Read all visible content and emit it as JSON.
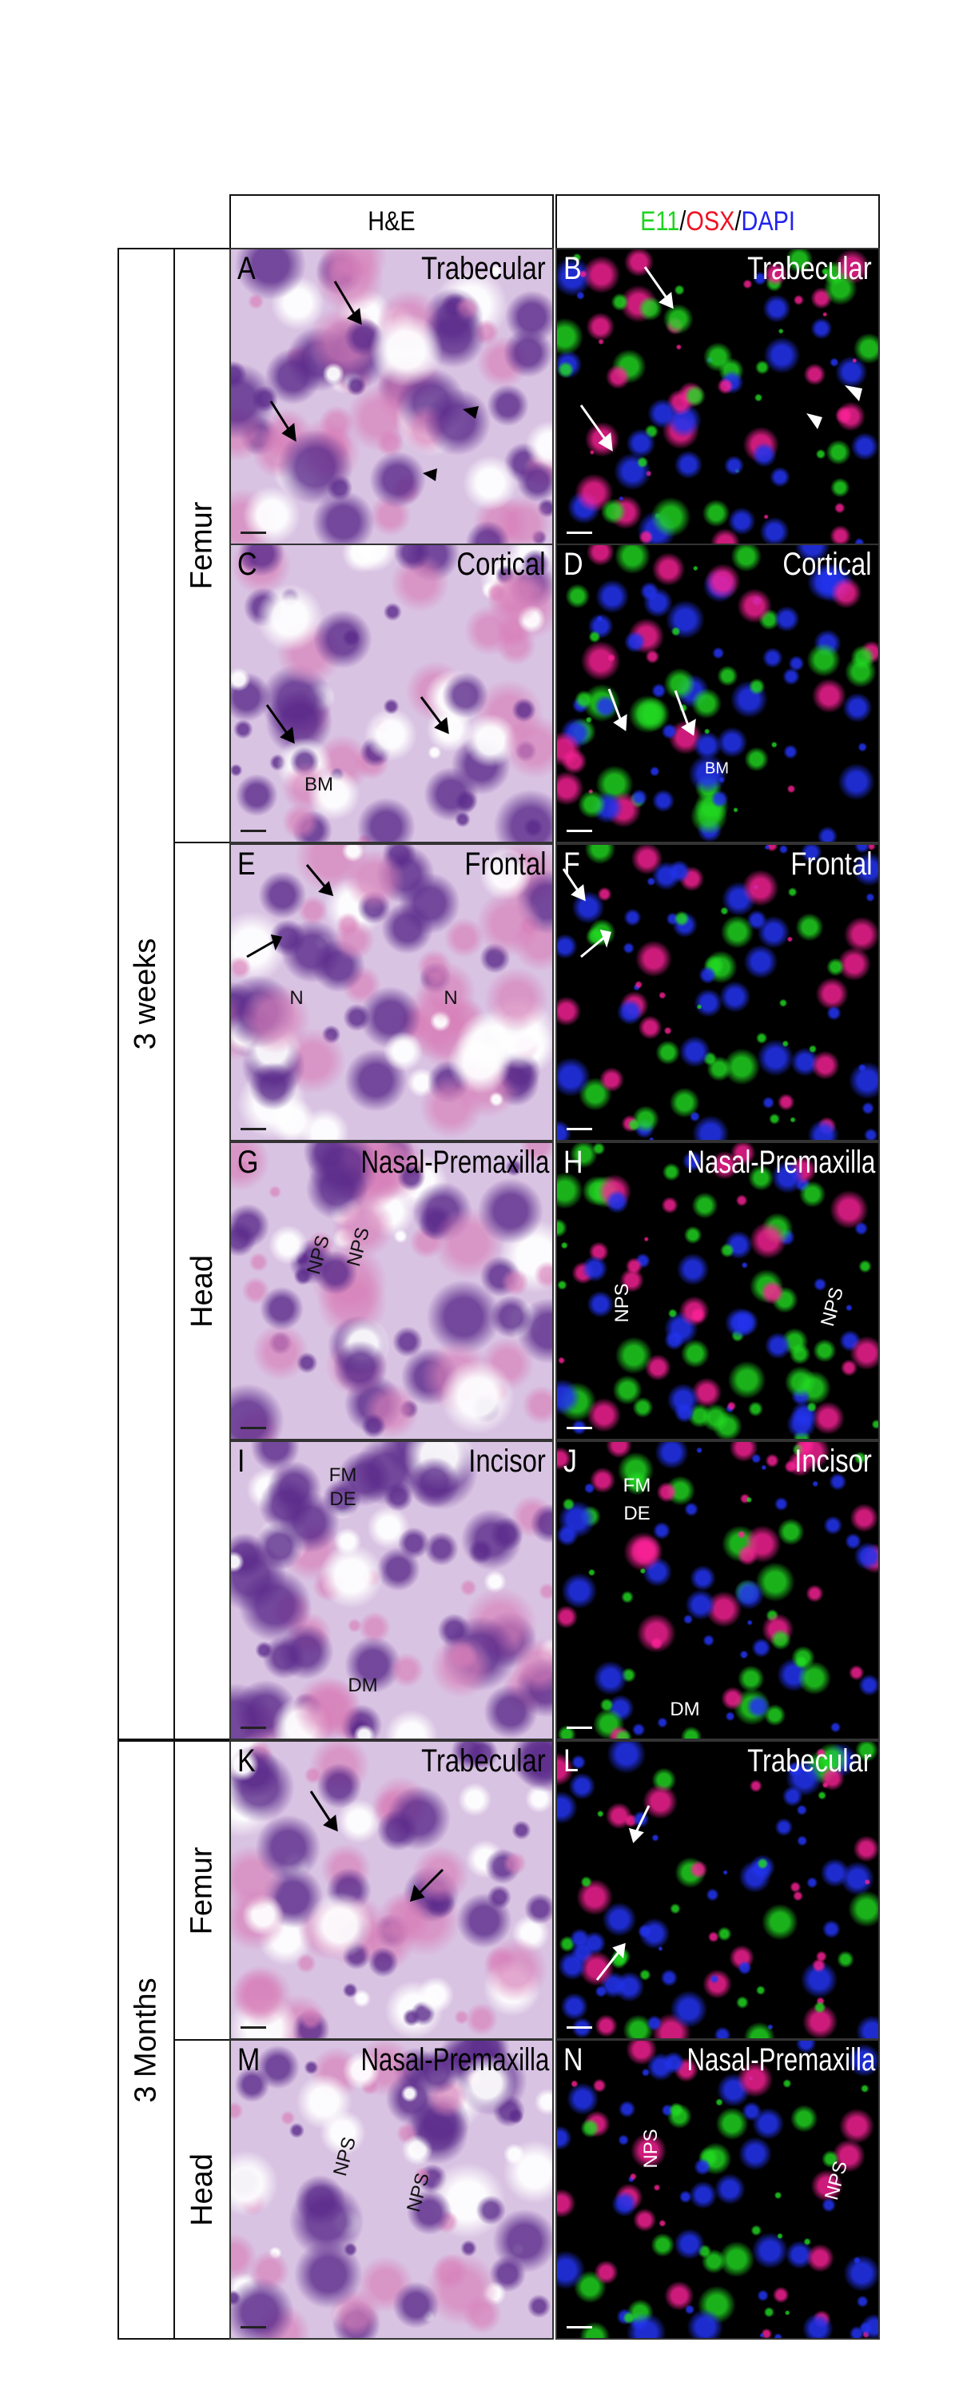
{
  "header": {
    "col1": "H&E",
    "col2": [
      {
        "text": "E11",
        "color": "#1fd31f"
      },
      {
        "text": "/",
        "color": "#000000"
      },
      {
        "text": "OSX",
        "color": "#ee1122"
      },
      {
        "text": "/",
        "color": "#000000"
      },
      {
        "text": "DAPI",
        "color": "#2222ee"
      }
    ]
  },
  "groups": {
    "age1": "3 weeks",
    "age2": "3 Months",
    "tissue_femur": "Femur",
    "tissue_head": "Head"
  },
  "panels": {
    "A": {
      "letter": "A",
      "title": "Trabecular",
      "stain": "H&E"
    },
    "B": {
      "letter": "B",
      "title": "Trabecular",
      "stain": "E11/OSX/DAPI"
    },
    "C": {
      "letter": "C",
      "title": "Cortical",
      "stain": "H&E",
      "ann": [
        "BM"
      ]
    },
    "D": {
      "letter": "D",
      "title": "Cortical",
      "stain": "E11/OSX/DAPI",
      "ann": [
        "BM"
      ]
    },
    "E": {
      "letter": "E",
      "title": "Frontal",
      "stain": "H&E",
      "ann": [
        "N",
        "N"
      ]
    },
    "F": {
      "letter": "F",
      "title": "Frontal",
      "stain": "E11/OSX/DAPI"
    },
    "G": {
      "letter": "G",
      "title": "Nasal-Premaxilla",
      "stain": "H&E",
      "ann": [
        "NPS",
        "NPS"
      ]
    },
    "H": {
      "letter": "H",
      "title": "Nasal-Premaxilla",
      "stain": "E11/OSX/DAPI",
      "ann": [
        "NPS",
        "NPS"
      ]
    },
    "I": {
      "letter": "I",
      "title": "Incisor",
      "stain": "H&E",
      "ann": [
        "FM",
        "DE",
        "DM"
      ]
    },
    "J": {
      "letter": "J",
      "title": "Incisor",
      "stain": "E11/OSX/DAPI",
      "ann": [
        "FM",
        "DE",
        "DM"
      ]
    },
    "K": {
      "letter": "K",
      "title": "Trabecular",
      "stain": "H&E"
    },
    "L": {
      "letter": "L",
      "title": "Trabecular",
      "stain": "E11/OSX/DAPI"
    },
    "M": {
      "letter": "M",
      "title": "Nasal-Premaxilla",
      "stain": "H&E",
      "ann": [
        "NPS",
        "NPS"
      ]
    },
    "N": {
      "letter": "N",
      "title": "Nasal-Premaxilla",
      "stain": "E11/OSX/DAPI",
      "ann": [
        "NPS",
        "NPS"
      ]
    }
  },
  "colors": {
    "he_base": "#d9c3e3",
    "he_dark": "#5a2a8a",
    "he_pink": "#d77fb8",
    "fl_green": "#22dd22",
    "fl_magenta": "#ff2299",
    "fl_blue": "#2233ee"
  }
}
